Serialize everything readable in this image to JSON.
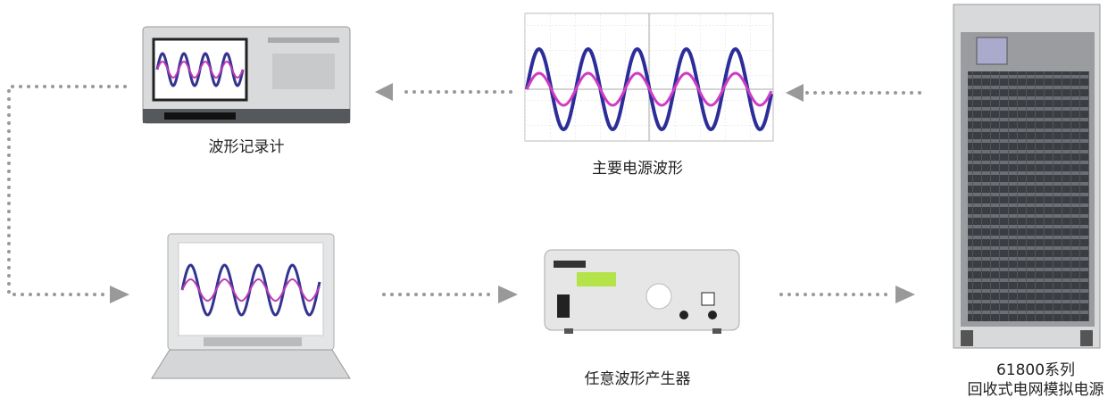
{
  "nodes": [
    {
      "label": "波形记录计"
    },
    {
      "label": "主要电源波形"
    },
    {
      "label": "任意波形产生器"
    },
    {
      "model": "61800系列",
      "label": "回收式电网模拟电源"
    }
  ]
}
